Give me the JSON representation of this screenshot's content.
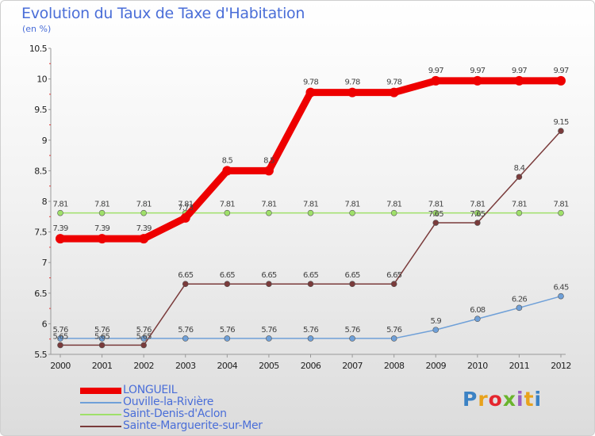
{
  "header": {
    "title": "Evolution du Taux de Taxe d'Habitation",
    "unit": "(en %)"
  },
  "logo": {
    "text": "Proxiti",
    "colors": [
      "#3b82c4",
      "#e8a21c",
      "#e5262e",
      "#6ab42d",
      "#9b5fc0",
      "#e8a21c",
      "#3b82c4"
    ]
  },
  "chart_data": {
    "type": "line",
    "x": [
      "2000",
      "2001",
      "2002",
      "2003",
      "2004",
      "2005",
      "2006",
      "2007",
      "2008",
      "2009",
      "2010",
      "2011",
      "2012"
    ],
    "ylim": [
      5.5,
      10.5
    ],
    "yticks": [
      5.5,
      6,
      6.5,
      7,
      7.5,
      8,
      8.5,
      9,
      9.5,
      10,
      10.5
    ],
    "ytick_labels": [
      "5.5",
      "6",
      "6.5",
      "7",
      "7.5",
      "8",
      "8.5",
      "9",
      "9.5",
      "10",
      "10.5"
    ],
    "grid": false,
    "legend_position": "bottom-left",
    "series": [
      {
        "name": "LONGUEIL",
        "color": "#ee0000",
        "values": [
          7.39,
          7.39,
          7.39,
          7.73,
          8.5,
          8.5,
          9.78,
          9.78,
          9.78,
          9.97,
          9.97,
          9.97,
          9.97
        ],
        "labels": [
          "7.39",
          "7.39",
          "7.39",
          "7.73",
          "8.5",
          "8.5",
          "9.78",
          "9.78",
          "9.78",
          "9.97",
          "9.97",
          "9.97",
          "9.97"
        ]
      },
      {
        "name": "Ouville-la-Rivière",
        "color": "#6fa0d8",
        "values": [
          5.76,
          5.76,
          5.76,
          5.76,
          5.76,
          5.76,
          5.76,
          5.76,
          5.76,
          5.9,
          6.08,
          6.26,
          6.45
        ],
        "labels": [
          "5.76",
          "5.76",
          "5.76",
          "5.76",
          "5.76",
          "5.76",
          "5.76",
          "5.76",
          "5.76",
          "5.9",
          "6.08",
          "6.26",
          "6.45"
        ]
      },
      {
        "name": "Saint-Denis-d'Aclon",
        "color": "#9fe06a",
        "values": [
          7.81,
          7.81,
          7.81,
          7.81,
          7.81,
          7.81,
          7.81,
          7.81,
          7.81,
          7.81,
          7.81,
          7.81,
          7.81
        ],
        "labels": [
          "7.81",
          "7.81",
          "7.81",
          "7.81",
          "7.81",
          "7.81",
          "7.81",
          "7.81",
          "7.81",
          "7.81",
          "7.81",
          "7.81",
          "7.81"
        ]
      },
      {
        "name": "Sainte-Marguerite-sur-Mer",
        "color": "#7a3b3b",
        "values": [
          5.65,
          5.65,
          5.65,
          6.65,
          6.65,
          6.65,
          6.65,
          6.65,
          6.65,
          7.65,
          7.65,
          8.4,
          9.15
        ],
        "labels": [
          "5.65",
          "5.65",
          "5.65",
          "6.65",
          "6.65",
          "6.65",
          "6.65",
          "6.65",
          "6.65",
          "7.65",
          "7.65",
          "8.4",
          "9.15"
        ]
      }
    ]
  }
}
